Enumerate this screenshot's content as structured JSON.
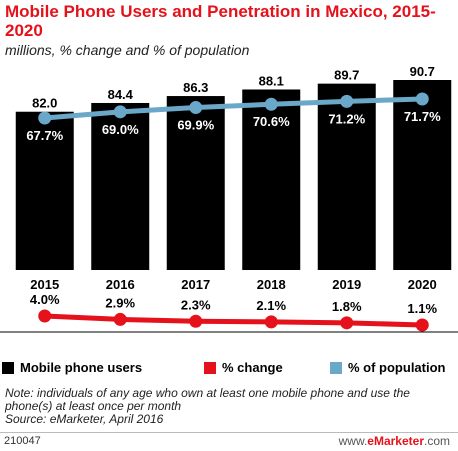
{
  "title": "Mobile Phone Users and Penetration in Mexico, 2015-2020",
  "subtitle": "millions, % change and % of population",
  "legend": {
    "users": "Mobile phone users",
    "change": "% change",
    "population": "% of population"
  },
  "note": "Note: individuals of any age who own at least one mobile phone and use the phone(s) at least once per month",
  "source": "Source: eMarketer, April 2016",
  "footer_id": "210047",
  "brand_prefix": "www.",
  "brand_name": "eMarketer",
  "brand_suffix": ".com",
  "colors": {
    "bars": "#000000",
    "change": "#e5111b",
    "population": "#6aa7c8"
  },
  "chart_data": {
    "type": "bar",
    "categories": [
      "2015",
      "2016",
      "2017",
      "2018",
      "2019",
      "2020"
    ],
    "series": [
      {
        "name": "Mobile phone users",
        "type": "bar",
        "values": [
          82.0,
          84.4,
          86.3,
          88.1,
          89.7,
          90.7
        ],
        "labels": [
          "82.0",
          "84.4",
          "86.3",
          "88.1",
          "89.7",
          "90.7"
        ]
      },
      {
        "name": "% of population",
        "type": "line",
        "values": [
          67.7,
          69.0,
          69.9,
          70.6,
          71.2,
          71.7
        ],
        "labels": [
          "67.7%",
          "69.0%",
          "69.9%",
          "70.6%",
          "71.2%",
          "71.7%"
        ]
      },
      {
        "name": "% change",
        "type": "line",
        "values": [
          4.0,
          2.9,
          2.3,
          2.1,
          1.8,
          1.1
        ],
        "labels": [
          "4.0%",
          "2.9%",
          "2.3%",
          "2.1%",
          "1.8%",
          "1.1%"
        ]
      }
    ]
  }
}
